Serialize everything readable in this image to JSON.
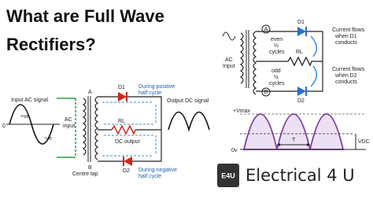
{
  "title": [
    "What are Full Wave",
    "Rectifiers?"
  ],
  "left_diagram": {
    "input_label": "Input AC signal",
    "positive": "+ve",
    "negative": "-ve",
    "zero": "0",
    "ac_input": [
      "AC",
      "input"
    ],
    "node_a": "A",
    "node_b": "B",
    "d1": "D1",
    "d2": "D2",
    "rl": "RL",
    "positive_half": [
      "During positive",
      "half cycle"
    ],
    "negative_half": [
      "During negative",
      "half cycle"
    ],
    "output_label": "Output DC signal",
    "dc_output": "DC output",
    "centre_tap": "Centre tap"
  },
  "right_circuit": {
    "ac_input": [
      "AC",
      "Input"
    ],
    "node_a": "A",
    "node_b": "B",
    "even": [
      "even",
      "½",
      "cycles"
    ],
    "odd": [
      "odd",
      "½",
      "cycles"
    ],
    "d1": "D1",
    "d2": "D2",
    "rl": "RL",
    "d1_note": [
      "Current flows",
      "when D1",
      "conducts"
    ],
    "d2_note": [
      "Current flows",
      "when D2",
      "conducts"
    ]
  },
  "waveform": {
    "vmax": "+Vmax",
    "zero": "0v",
    "period": "T",
    "vdc": "VDC"
  },
  "logo": {
    "badge": "E4U",
    "name": "Electrical 4 U"
  }
}
